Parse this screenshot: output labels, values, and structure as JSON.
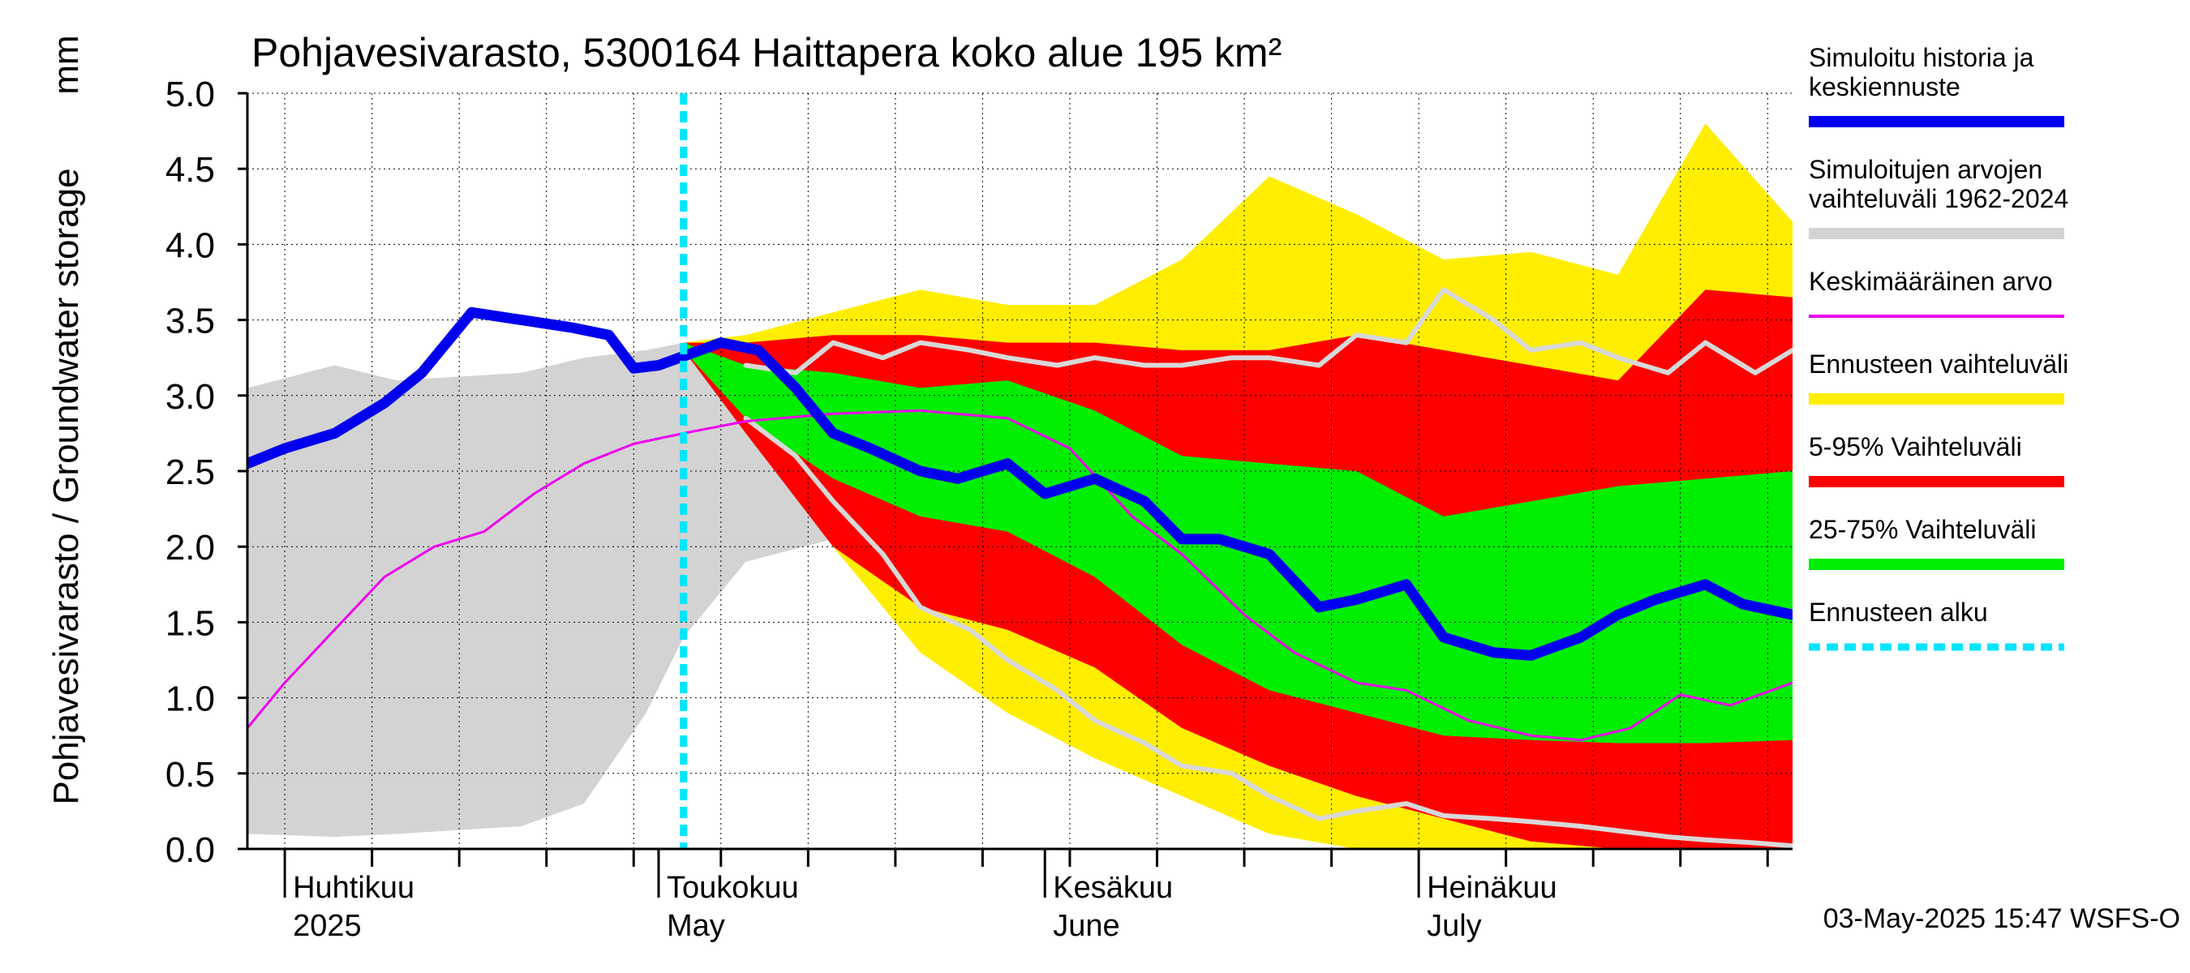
{
  "chart_data": {
    "type": "area",
    "title": "Pohjavesivarasto, 5300164 Haittapera koko alue 195 km²",
    "ylabel": "Pohjavesivarasto / Groundwater storage",
    "yunit": "mm",
    "ylim": [
      0,
      5.0
    ],
    "yticks": [
      "0.0",
      "0.5",
      "1.0",
      "1.5",
      "2.0",
      "2.5",
      "3.0",
      "3.5",
      "4.0",
      "4.5",
      "5.0"
    ],
    "xlim": [
      "2025-03-29",
      "2025-07-31"
    ],
    "month_labels": [
      {
        "fi": "Huhtikuu",
        "en": "2025",
        "date": "2025-04-01"
      },
      {
        "fi": "Toukokuu",
        "en": "May",
        "date": "2025-05-01"
      },
      {
        "fi": "Kesäkuu",
        "en": "June",
        "date": "2025-06-01"
      },
      {
        "fi": "Heinäkuu",
        "en": "July",
        "date": "2025-07-01"
      }
    ],
    "forecast_start": "2025-05-03",
    "timestamp": "03-May-2025 15:47 WSFS-O",
    "grid": true,
    "legend_position": "right",
    "legend": [
      {
        "label": "Simuloitu historia ja keskiennuste",
        "color": "#0000ee",
        "style": "thick"
      },
      {
        "label": "Simuloitujen arvojen vaihteluväli 1962-2024",
        "color": "#d3d3d3",
        "style": "band"
      },
      {
        "label": "Keskimääräinen arvo",
        "color": "#ee00ee",
        "style": "line"
      },
      {
        "label": "Ennusteen vaihteluväli",
        "color": "#ffee00",
        "style": "band"
      },
      {
        "label": "5-95% Vaihteluväli",
        "color": "#ff0000",
        "style": "band"
      },
      {
        "label": "25-75% Vaihteluväli",
        "color": "#00ee00",
        "style": "band"
      },
      {
        "label": "Ennusteen alku",
        "color": "#00e5ff",
        "style": "dashed"
      }
    ],
    "series": {
      "hist_range": {
        "x": [
          "2025-03-29",
          "2025-04-05",
          "2025-04-10",
          "2025-04-20",
          "2025-04-25",
          "2025-04-30",
          "2025-05-03",
          "2025-05-08",
          "2025-05-15",
          "2025-05-22",
          "2025-05-29",
          "2025-06-05",
          "2025-06-12",
          "2025-06-19",
          "2025-06-26",
          "2025-07-03",
          "2025-07-10",
          "2025-07-17",
          "2025-07-24",
          "2025-07-31"
        ],
        "low": [
          0.1,
          0.08,
          0.1,
          0.15,
          0.3,
          0.9,
          1.4,
          1.9,
          2.05,
          2.2,
          1.6,
          1.05,
          0.7,
          0.45,
          0.3,
          0.2,
          0.13,
          0.08,
          0.04,
          0.02
        ],
        "high": [
          3.05,
          3.2,
          3.1,
          3.15,
          3.25,
          3.3,
          3.35,
          3.4,
          3.4,
          3.3,
          3.3,
          3.25,
          3.2,
          3.2,
          3.1,
          3.1,
          3.05,
          3.0,
          3.0,
          3.0
        ]
      },
      "forecast_range": {
        "x": [
          "2025-05-03",
          "2025-05-08",
          "2025-05-15",
          "2025-05-22",
          "2025-05-29",
          "2025-06-05",
          "2025-06-12",
          "2025-06-19",
          "2025-06-26",
          "2025-07-03",
          "2025-07-10",
          "2025-07-17",
          "2025-07-24",
          "2025-07-31"
        ],
        "low": [
          3.3,
          2.8,
          2.0,
          1.3,
          0.9,
          0.6,
          0.35,
          0.1,
          0.0,
          0.0,
          0.0,
          0.0,
          0.0,
          0.0
        ],
        "high": [
          3.35,
          3.4,
          3.55,
          3.7,
          3.6,
          3.6,
          3.9,
          4.45,
          4.2,
          3.9,
          3.95,
          3.8,
          4.8,
          4.15
        ]
      },
      "p5_95": {
        "x": [
          "2025-05-03",
          "2025-05-08",
          "2025-05-15",
          "2025-05-22",
          "2025-05-29",
          "2025-06-05",
          "2025-06-12",
          "2025-06-19",
          "2025-06-26",
          "2025-07-03",
          "2025-07-10",
          "2025-07-17",
          "2025-07-24",
          "2025-07-31"
        ],
        "low": [
          3.3,
          2.75,
          2.0,
          1.6,
          1.45,
          1.2,
          0.8,
          0.55,
          0.35,
          0.2,
          0.05,
          0.0,
          0.0,
          0.0
        ],
        "high": [
          3.35,
          3.35,
          3.4,
          3.4,
          3.35,
          3.35,
          3.3,
          3.3,
          3.4,
          3.3,
          3.2,
          3.1,
          3.7,
          3.65
        ]
      },
      "p25_75": {
        "x": [
          "2025-05-03",
          "2025-05-08",
          "2025-05-15",
          "2025-05-22",
          "2025-05-29",
          "2025-06-05",
          "2025-06-12",
          "2025-06-19",
          "2025-06-26",
          "2025-07-03",
          "2025-07-10",
          "2025-07-17",
          "2025-07-24",
          "2025-07-31"
        ],
        "low": [
          3.3,
          2.85,
          2.45,
          2.2,
          2.1,
          1.8,
          1.35,
          1.05,
          0.9,
          0.75,
          0.72,
          0.7,
          0.7,
          0.72
        ],
        "high": [
          3.35,
          3.2,
          3.15,
          3.05,
          3.1,
          2.9,
          2.6,
          2.55,
          2.5,
          2.2,
          2.3,
          2.4,
          2.45,
          2.5
        ]
      },
      "median": {
        "x": [
          "2025-03-29",
          "2025-04-01",
          "2025-04-05",
          "2025-04-09",
          "2025-04-12",
          "2025-04-16",
          "2025-04-20",
          "2025-04-24",
          "2025-04-27",
          "2025-04-29",
          "2025-05-01",
          "2025-05-06",
          "2025-05-09",
          "2025-05-12",
          "2025-05-15",
          "2025-05-18",
          "2025-05-22",
          "2025-05-25",
          "2025-05-29",
          "2025-06-01",
          "2025-06-05",
          "2025-06-09",
          "2025-06-12",
          "2025-06-15",
          "2025-06-19",
          "2025-06-23",
          "2025-06-26",
          "2025-06-30",
          "2025-07-03",
          "2025-07-07",
          "2025-07-10",
          "2025-07-14",
          "2025-07-17",
          "2025-07-20",
          "2025-07-24",
          "2025-07-27",
          "2025-07-31"
        ],
        "y": [
          2.55,
          2.65,
          2.75,
          2.95,
          3.15,
          3.55,
          3.5,
          3.45,
          3.4,
          3.18,
          3.2,
          3.35,
          3.3,
          3.05,
          2.75,
          2.65,
          2.5,
          2.45,
          2.55,
          2.35,
          2.45,
          2.3,
          2.05,
          2.05,
          1.95,
          1.6,
          1.65,
          1.75,
          1.4,
          1.3,
          1.28,
          1.4,
          1.55,
          1.65,
          1.75,
          1.62,
          1.55
        ]
      },
      "mean": {
        "x": [
          "2025-03-29",
          "2025-04-01",
          "2025-04-05",
          "2025-04-09",
          "2025-04-13",
          "2025-04-17",
          "2025-04-21",
          "2025-04-25",
          "2025-04-29",
          "2025-05-03",
          "2025-05-08",
          "2025-05-15",
          "2025-05-22",
          "2025-05-29",
          "2025-06-03",
          "2025-06-08",
          "2025-06-12",
          "2025-06-17",
          "2025-06-21",
          "2025-06-26",
          "2025-06-30",
          "2025-07-05",
          "2025-07-10",
          "2025-07-14",
          "2025-07-18",
          "2025-07-22",
          "2025-07-26",
          "2025-07-31"
        ],
        "y": [
          0.8,
          1.1,
          1.45,
          1.8,
          2.0,
          2.1,
          2.35,
          2.55,
          2.68,
          2.75,
          2.83,
          2.88,
          2.9,
          2.85,
          2.65,
          2.2,
          1.95,
          1.55,
          1.3,
          1.1,
          1.05,
          0.85,
          0.75,
          0.72,
          0.8,
          1.02,
          0.95,
          1.1
        ]
      },
      "sim_max": {
        "x": [
          "2025-05-08",
          "2025-05-12",
          "2025-05-15",
          "2025-05-19",
          "2025-05-22",
          "2025-05-26",
          "2025-05-29",
          "2025-06-02",
          "2025-06-05",
          "2025-06-09",
          "2025-06-12",
          "2025-06-16",
          "2025-06-19",
          "2025-06-23",
          "2025-06-26",
          "2025-06-30",
          "2025-07-03",
          "2025-07-07",
          "2025-07-10",
          "2025-07-14",
          "2025-07-17",
          "2025-07-21",
          "2025-07-24",
          "2025-07-28",
          "2025-07-31"
        ],
        "y": [
          3.2,
          3.15,
          3.35,
          3.25,
          3.35,
          3.3,
          3.25,
          3.2,
          3.25,
          3.2,
          3.2,
          3.25,
          3.25,
          3.2,
          3.4,
          3.35,
          3.7,
          3.5,
          3.3,
          3.35,
          3.25,
          3.15,
          3.35,
          3.15,
          3.3
        ]
      },
      "sim_min": {
        "x": [
          "2025-05-08",
          "2025-05-12",
          "2025-05-15",
          "2025-05-19",
          "2025-05-22",
          "2025-05-26",
          "2025-05-29",
          "2025-06-02",
          "2025-06-05",
          "2025-06-09",
          "2025-06-12",
          "2025-06-16",
          "2025-06-19",
          "2025-06-23",
          "2025-06-26",
          "2025-06-30",
          "2025-07-03",
          "2025-07-07",
          "2025-07-10",
          "2025-07-14",
          "2025-07-17",
          "2025-07-21",
          "2025-07-24",
          "2025-07-28",
          "2025-07-31"
        ],
        "y": [
          2.85,
          2.6,
          2.3,
          1.95,
          1.6,
          1.45,
          1.25,
          1.05,
          0.85,
          0.7,
          0.55,
          0.5,
          0.35,
          0.2,
          0.25,
          0.3,
          0.22,
          0.2,
          0.18,
          0.15,
          0.12,
          0.08,
          0.06,
          0.04,
          0.02
        ]
      }
    }
  }
}
